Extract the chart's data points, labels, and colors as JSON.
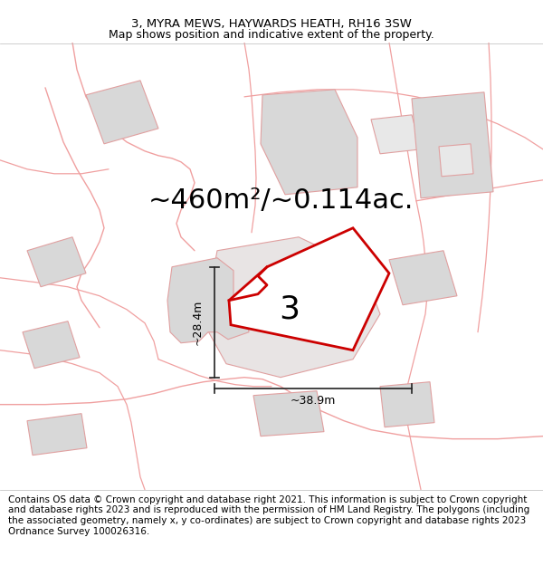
{
  "title_line1": "3, MYRA MEWS, HAYWARDS HEATH, RH16 3SW",
  "title_line2": "Map shows position and indicative extent of the property.",
  "area_text": "~460m²/~0.114ac.",
  "property_number": "3",
  "dim_vertical": "~28.4m",
  "dim_horizontal": "~38.9m",
  "footer_text": "Contains OS data © Crown copyright and database right 2021. This information is subject to Crown copyright and database rights 2023 and is reproduced with the permission of HM Land Registry. The polygons (including the associated geometry, namely x, y co-ordinates) are subject to Crown copyright and database rights 2023 Ordnance Survey 100026316.",
  "title_fontsize": 9.5,
  "subtitle_fontsize": 9,
  "area_fontsize": 22,
  "footer_fontsize": 7.5,
  "red_color": "#cc0000",
  "pink_color": "#f0a0a0",
  "gray_fill": "#d8d8d8",
  "gray_outline": "#c0b8b8",
  "line_color": "#222222",
  "map_bg": "#ffffff"
}
